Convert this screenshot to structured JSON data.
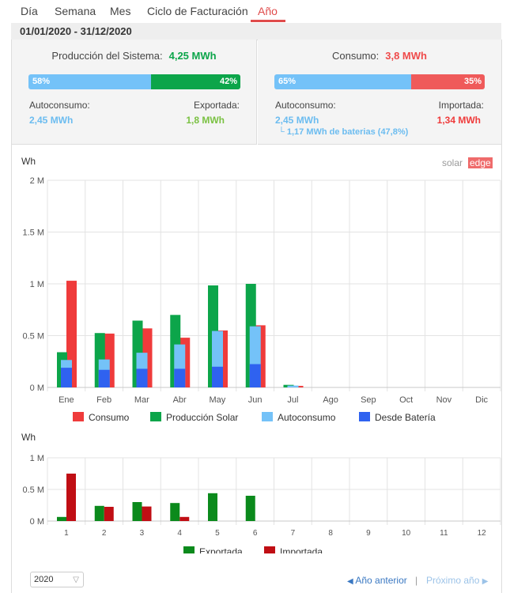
{
  "tabs": [
    {
      "label": "Día",
      "active": false
    },
    {
      "label": "Semana",
      "active": false
    },
    {
      "label": "Mes",
      "active": false
    },
    {
      "label": "Ciclo de Facturación",
      "active": false
    },
    {
      "label": "Año",
      "active": true
    }
  ],
  "date_range": "01/01/2020 - 31/12/2020",
  "production": {
    "title": "Producción del Sistema:",
    "total": "4,25 MWh",
    "bar_left_pct": "58%",
    "bar_right_pct": "42%",
    "bar_left_fraction": 0.58,
    "self_label": "Autoconsumo:",
    "self_value": "2,45 MWh",
    "export_label": "Exportada:",
    "export_value": "1,8 MWh"
  },
  "consumption": {
    "title": "Consumo:",
    "total": "3,8 MWh",
    "bar_left_pct": "65%",
    "bar_right_pct": "35%",
    "bar_left_fraction": 0.65,
    "self_label": "Autoconsumo:",
    "self_value": "2,45 MWh",
    "battery_note": "└ 1,17 MWh de baterias (47,8%)",
    "import_label": "Importada:",
    "import_value": "1,34 MWh"
  },
  "logo": {
    "part1": "solar",
    "part2": "edge"
  },
  "colors": {
    "consumo": "#ef3b3b",
    "produccion": "#0ca54a",
    "autoconsumo": "#74c2f8",
    "bateria": "#2f62f0",
    "exportada": "#0b8a1c",
    "importada": "#c00e14"
  },
  "chart_data": [
    {
      "type": "bar",
      "ylabel": "Wh",
      "ylim": [
        0,
        2000000
      ],
      "yticks": [
        "0 M",
        "0.5 M",
        "1 M",
        "1.5 M",
        "2 M"
      ],
      "categories": [
        "Ene",
        "Feb",
        "Mar",
        "Abr",
        "May",
        "Jun",
        "Jul",
        "Ago",
        "Sep",
        "Oct",
        "Nov",
        "Dic"
      ],
      "series": [
        {
          "name": "Consumo",
          "values": [
            1030000,
            520000,
            570000,
            480000,
            550000,
            600000,
            15000,
            0,
            0,
            0,
            0,
            0
          ]
        },
        {
          "name": "Producción Solar",
          "values": [
            340000,
            525000,
            645000,
            700000,
            985000,
            1000000,
            25000,
            0,
            0,
            0,
            0,
            0
          ]
        },
        {
          "name": "Autoconsumo",
          "values": [
            265000,
            270000,
            335000,
            415000,
            545000,
            590000,
            18000,
            0,
            0,
            0,
            0,
            0
          ]
        },
        {
          "name": "Desde Batería",
          "values": [
            190000,
            170000,
            180000,
            180000,
            200000,
            225000,
            0,
            0,
            0,
            0,
            0,
            0
          ]
        }
      ],
      "legend": "bottom"
    },
    {
      "type": "bar",
      "ylabel": "Wh",
      "ylim": [
        0,
        1000000
      ],
      "yticks": [
        "0 M",
        "0.5 M",
        "1 M"
      ],
      "categories": [
        "1",
        "2",
        "3",
        "4",
        "5",
        "6",
        "7",
        "8",
        "9",
        "10",
        "11",
        "12"
      ],
      "series": [
        {
          "name": "Exportada",
          "values": [
            65000,
            240000,
            300000,
            285000,
            440000,
            400000,
            0,
            0,
            0,
            0,
            0,
            0
          ]
        },
        {
          "name": "Importada",
          "values": [
            750000,
            225000,
            230000,
            65000,
            0,
            0,
            0,
            0,
            0,
            0,
            0,
            0
          ]
        }
      ],
      "legend": "bottom"
    }
  ],
  "footer": {
    "year_value": "2020",
    "prev_label": "Año anterior",
    "next_label": "Próximo año",
    "separator": "|"
  }
}
